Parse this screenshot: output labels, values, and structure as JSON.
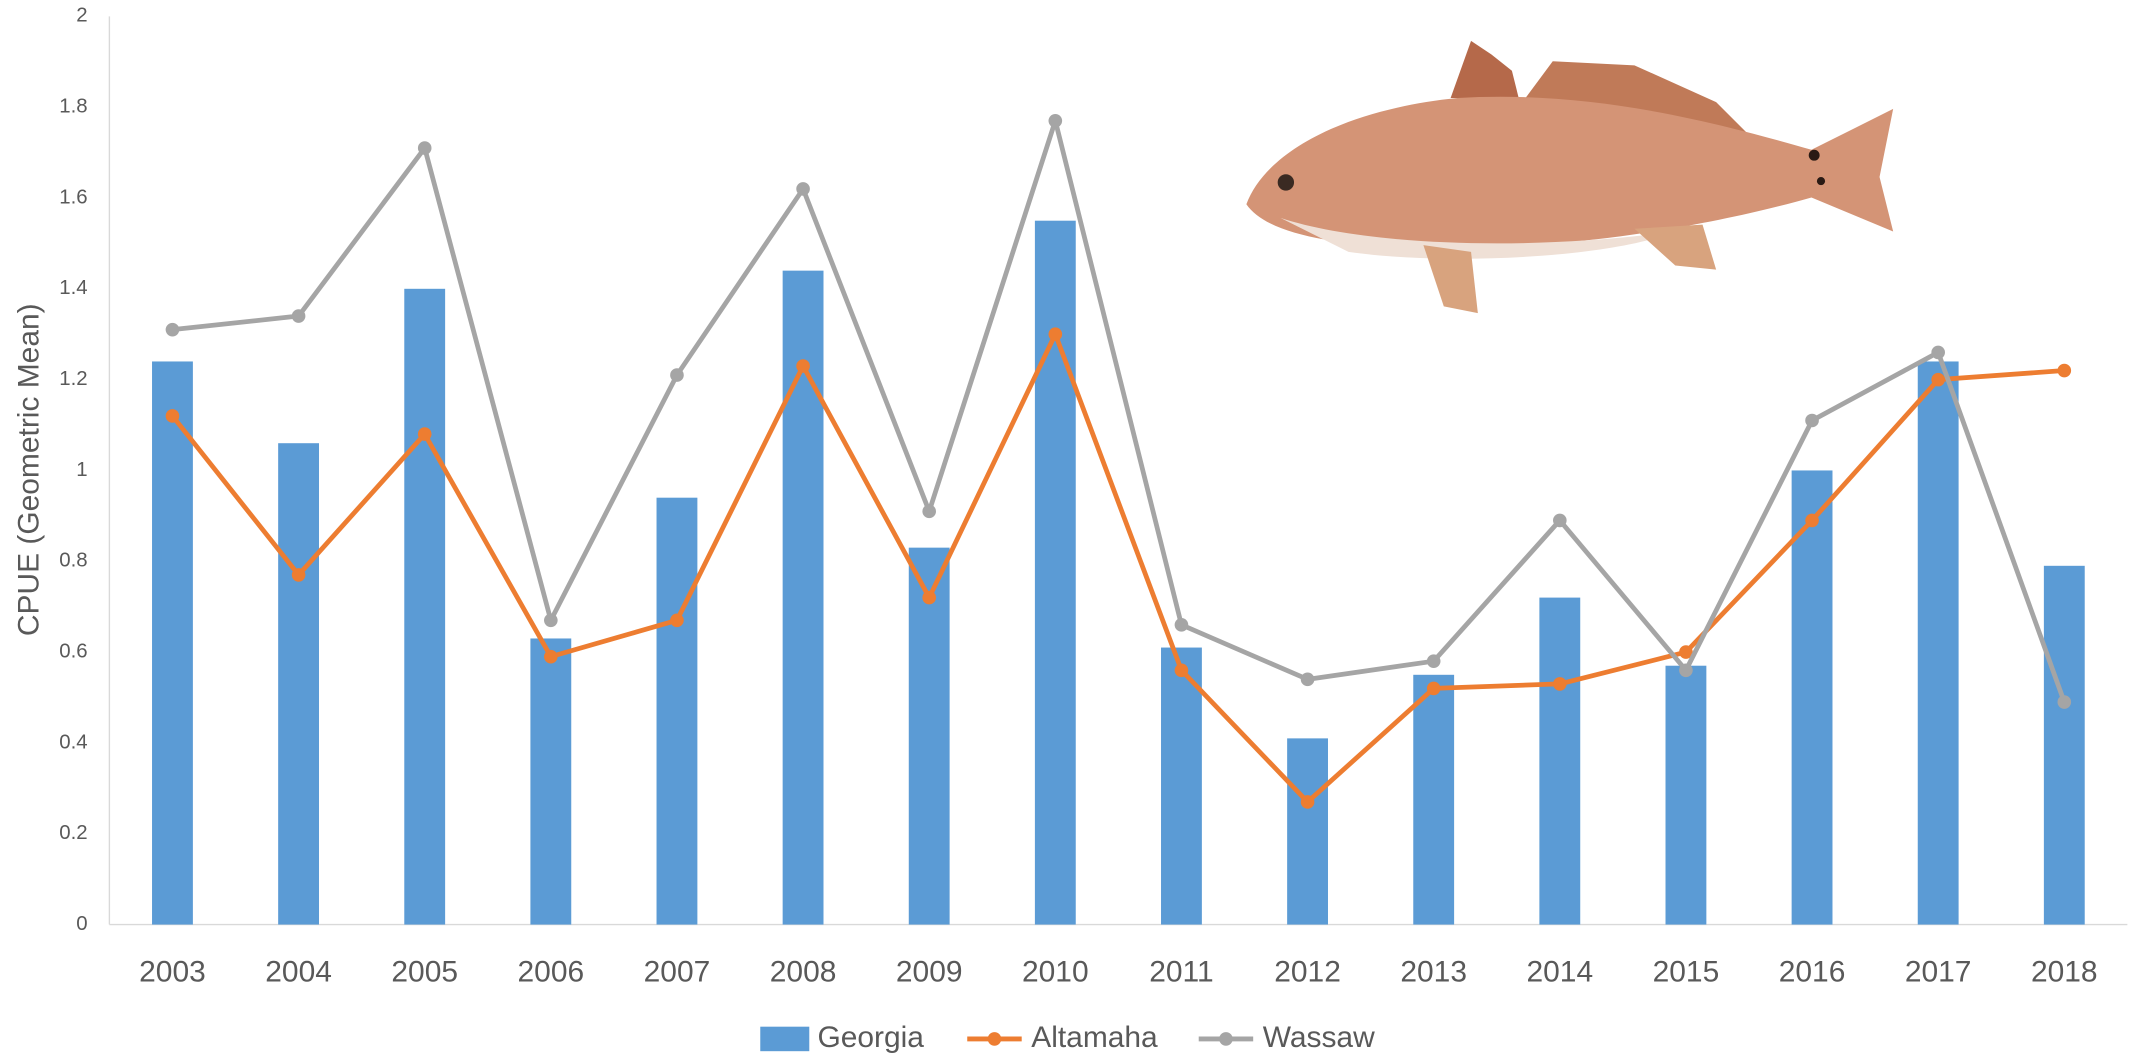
{
  "chart_data": {
    "type": "bar-line",
    "y_label": "CPUE (Geometric Mean)",
    "categories": [
      "2003",
      "2004",
      "2005",
      "2006",
      "2007",
      "2008",
      "2009",
      "2010",
      "2011",
      "2012",
      "2013",
      "2014",
      "2015",
      "2016",
      "2017",
      "2018"
    ],
    "series": [
      {
        "name": "Georgia",
        "type": "bar",
        "color": "#5b9bd5",
        "values": [
          1.24,
          1.06,
          1.4,
          0.63,
          0.94,
          1.44,
          0.83,
          1.55,
          0.61,
          0.41,
          0.55,
          0.72,
          0.57,
          1.0,
          1.24,
          0.79
        ]
      },
      {
        "name": "Altamaha",
        "type": "line",
        "color": "#ed7d31",
        "values": [
          1.12,
          0.77,
          1.08,
          0.59,
          0.67,
          1.23,
          0.72,
          1.3,
          0.56,
          0.27,
          0.52,
          0.53,
          0.6,
          0.89,
          1.2,
          1.22
        ]
      },
      {
        "name": "Wassaw",
        "type": "line",
        "color": "#a5a5a5",
        "values": [
          1.31,
          1.34,
          1.71,
          0.67,
          1.21,
          1.62,
          0.91,
          1.77,
          0.66,
          0.54,
          0.58,
          0.89,
          0.56,
          1.11,
          1.26,
          0.49
        ]
      }
    ],
    "ylim": [
      0,
      2
    ],
    "yticks": [
      0,
      0.2,
      0.4,
      0.6,
      0.8,
      1,
      1.2,
      1.4,
      1.6,
      1.8,
      2
    ],
    "legend": "bottom",
    "grid": false
  }
}
